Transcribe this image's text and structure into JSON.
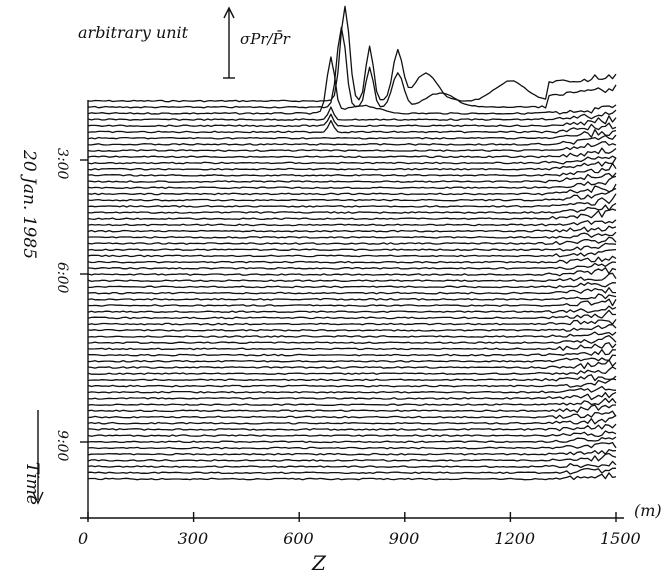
{
  "chart_data": {
    "type": "line",
    "scale_bar": {
      "label": "arbitrary unit",
      "quantity": "σPr/P̄r"
    },
    "xlabel": "Z",
    "x_unit": "(m)",
    "x_ticks": [
      "0",
      "300",
      "600",
      "900",
      "1200",
      "1500"
    ],
    "xlim": [
      0,
      1500
    ],
    "date_label": "20 Jan. 1985",
    "time_ticks": [
      "3:00",
      "6:00",
      "9:00"
    ],
    "time_label": "Time",
    "trace_count": 62,
    "features": [
      {
        "description": "sharp peak near Z=700 m on uppermost traces",
        "z": 720
      },
      {
        "description": "secondary peaks near Z=800-900 m on uppermost traces",
        "z": 880
      },
      {
        "description": "increased fluctuation beyond Z≈1300 m",
        "z": 1400
      }
    ],
    "grid": false
  }
}
